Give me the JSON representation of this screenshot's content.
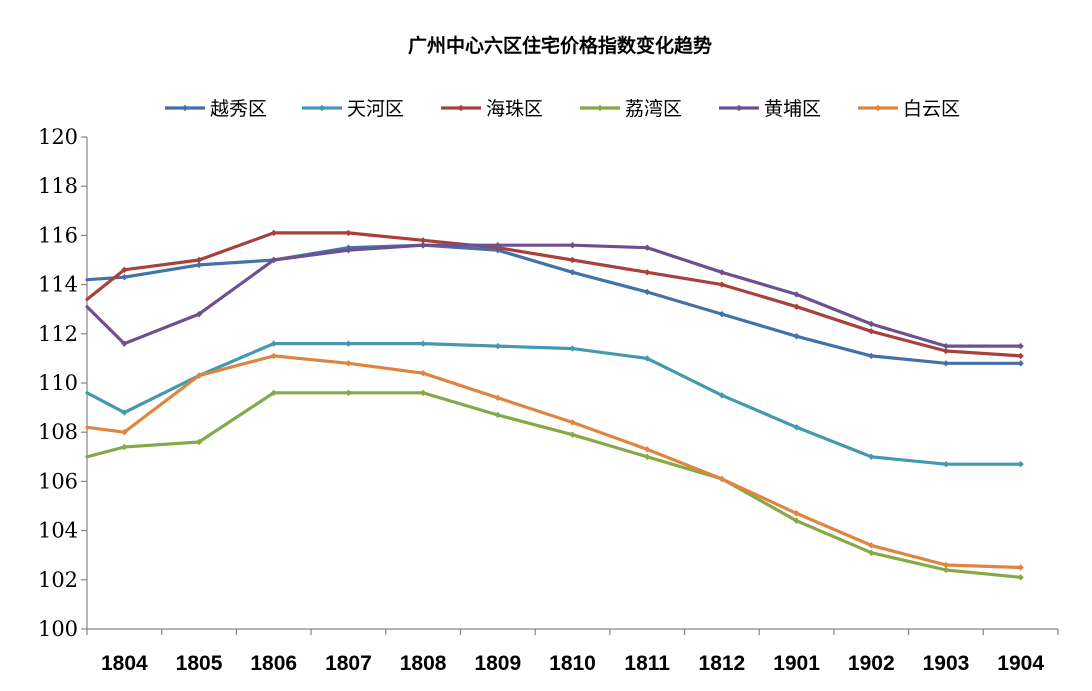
{
  "chart_data": {
    "type": "line",
    "title": "广州中心六区住宅价格指数变化趋势",
    "xlabel": "",
    "ylabel": "",
    "categories": [
      "1804",
      "1805",
      "1806",
      "1807",
      "1808",
      "1809",
      "1810",
      "1811",
      "1812",
      "1901",
      "1902",
      "1903",
      "1904"
    ],
    "ylim": [
      100,
      120
    ],
    "yticks": [
      "100",
      "102",
      "104",
      "106",
      "108",
      "110",
      "112",
      "114",
      "116",
      "118",
      "120"
    ],
    "grid": false,
    "legend": "top",
    "series": [
      {
        "name": "越秀区",
        "color": "#4472A8",
        "start": 114.2,
        "values": [
          114.3,
          114.8,
          115.0,
          115.5,
          115.6,
          115.4,
          114.5,
          113.7,
          112.8,
          111.9,
          111.1,
          110.8,
          110.8
        ]
      },
      {
        "name": "天河区",
        "color": "#4399AE",
        "start": 109.6,
        "values": [
          108.8,
          110.3,
          111.6,
          111.6,
          111.6,
          111.5,
          111.4,
          111.0,
          109.5,
          108.2,
          107.0,
          106.7,
          106.7
        ]
      },
      {
        "name": "海珠区",
        "color": "#A8403C",
        "start": 113.4,
        "values": [
          114.6,
          115.0,
          116.1,
          116.1,
          115.8,
          115.5,
          115.0,
          114.5,
          114.0,
          113.1,
          112.1,
          111.3,
          111.1
        ]
      },
      {
        "name": "荔湾区",
        "color": "#86A948",
        "start": 107.0,
        "values": [
          107.4,
          107.6,
          109.6,
          109.6,
          109.6,
          108.7,
          107.9,
          107.0,
          106.1,
          104.4,
          103.1,
          102.4,
          102.1
        ]
      },
      {
        "name": "黄埔区",
        "color": "#6D5090",
        "start": 113.1,
        "values": [
          111.6,
          112.8,
          115.0,
          115.4,
          115.6,
          115.6,
          115.6,
          115.5,
          114.5,
          113.6,
          112.4,
          111.5,
          111.5
        ]
      },
      {
        "name": "白云区",
        "color": "#DE8640",
        "start": 108.2,
        "values": [
          108.0,
          110.3,
          111.1,
          110.8,
          110.4,
          109.4,
          108.4,
          107.3,
          106.1,
          104.7,
          103.4,
          102.6,
          102.5
        ]
      }
    ]
  }
}
